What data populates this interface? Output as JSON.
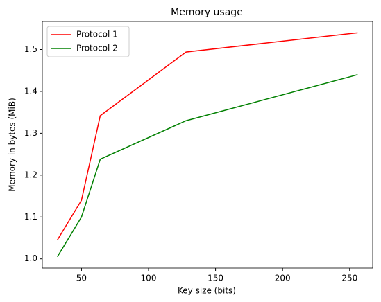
{
  "chart_data": {
    "type": "line",
    "title": "Memory usage",
    "x_label": "Key size (bits)",
    "y_label": "Memory in bytes (MiB)",
    "x": [
      32,
      50,
      64,
      128,
      256
    ],
    "series": [
      {
        "name": "Protocol 1",
        "color": "#ff0000",
        "values": [
          1.045,
          1.14,
          1.342,
          1.494,
          1.54
        ]
      },
      {
        "name": "Protocol 2",
        "color": "#008000",
        "values": [
          1.005,
          1.1,
          1.238,
          1.33,
          1.44
        ]
      }
    ],
    "xlim": [
      20.8,
      267.2
    ],
    "xticks": [
      50,
      100,
      150,
      200,
      250
    ],
    "ylim": [
      0.978,
      1.567
    ],
    "yticks": [
      {
        "value": 1,
        "label": "1.0"
      },
      1.1,
      1.2,
      1.3,
      1.4,
      1.5
    ],
    "grid": false,
    "legend": "upper left"
  }
}
